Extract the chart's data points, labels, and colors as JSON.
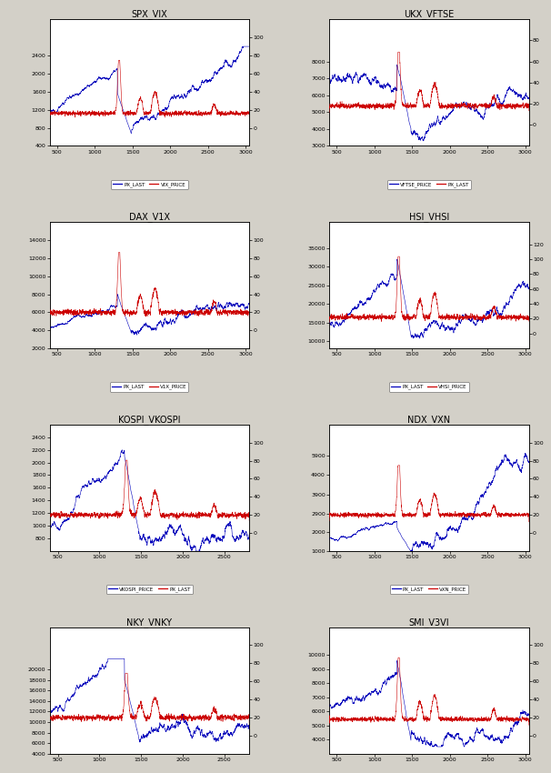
{
  "figsize": [
    6.06,
    8.5
  ],
  "dpi": 100,
  "bg_color": "#d3d0c8",
  "plot_bg_color": "#ffffff",
  "nrows": 4,
  "ncols": 2,
  "panels": [
    {
      "title": "SPX_VIX",
      "left_label": "PX_LAST",
      "right_label": "VIX_PRICE",
      "left_color": "#0000bb",
      "right_color": "#cc0000",
      "left_ylim": [
        400,
        3200
      ],
      "left_yticks": [
        400,
        800,
        1200,
        1600,
        2000,
        2400
      ],
      "right_ylim": [
        -20,
        120
      ],
      "right_yticks": [
        0,
        20,
        40,
        60,
        80,
        100
      ],
      "xlim": [
        400,
        3050
      ],
      "xticks": [
        500,
        1000,
        1500,
        2000,
        2500,
        3000
      ],
      "equity_key": "spx",
      "vol_key": "vix",
      "equity_on_left": true,
      "equity_color": "#0000bb",
      "vol_color": "#cc0000"
    },
    {
      "title": "UKX_VFTSE",
      "left_label": "VFTSE_PRICE",
      "right_label": "PX_LAST",
      "left_color": "#0000bb",
      "right_color": "#cc0000",
      "left_ylim": [
        3000,
        10500
      ],
      "left_yticks": [
        3000,
        4000,
        5000,
        6000,
        7000,
        8000
      ],
      "right_ylim": [
        -20,
        100
      ],
      "right_yticks": [
        0,
        20,
        40,
        60,
        80
      ],
      "xlim": [
        400,
        3050
      ],
      "xticks": [
        500,
        1000,
        1500,
        2000,
        2500,
        3000
      ],
      "equity_key": "ukx",
      "vol_key": "vftse",
      "equity_on_left": true,
      "equity_color": "#0000bb",
      "vol_color": "#cc0000"
    },
    {
      "title": "DAX_V1X",
      "left_label": "PX_LAST",
      "right_label": "V1X_PRICE",
      "left_color": "#0000bb",
      "right_color": "#cc0000",
      "left_ylim": [
        2000,
        16000
      ],
      "left_yticks": [
        2000,
        4000,
        6000,
        8000,
        10000,
        12000,
        14000
      ],
      "right_ylim": [
        -20,
        120
      ],
      "right_yticks": [
        0,
        20,
        40,
        60,
        80,
        100
      ],
      "xlim": [
        400,
        3050
      ],
      "xticks": [
        500,
        1000,
        1500,
        2000,
        2500,
        3000
      ],
      "equity_key": "dax",
      "vol_key": "v1x",
      "equity_on_left": true,
      "equity_color": "#0000bb",
      "vol_color": "#cc0000"
    },
    {
      "title": "HSI_VHSI",
      "left_label": "PX_LAST",
      "right_label": "VHSI_PRICE",
      "left_color": "#0000bb",
      "right_color": "#cc0000",
      "left_ylim": [
        8000,
        42000
      ],
      "left_yticks": [
        10000,
        15000,
        20000,
        25000,
        30000,
        35000
      ],
      "right_ylim": [
        -20,
        150
      ],
      "right_yticks": [
        0,
        20,
        40,
        60,
        80,
        100,
        120
      ],
      "xlim": [
        400,
        3050
      ],
      "xticks": [
        500,
        1000,
        1500,
        2000,
        2500,
        3000
      ],
      "equity_key": "hsi",
      "vol_key": "vhsi",
      "equity_on_left": true,
      "equity_color": "#0000bb",
      "vol_color": "#cc0000"
    },
    {
      "title": "KOSPI_VKOSPI",
      "left_label": "VKOSPI_PRICE",
      "right_label": "PX_LAST",
      "left_color": "#0000bb",
      "right_color": "#cc0000",
      "left_ylim": [
        600,
        2600
      ],
      "left_yticks": [
        800,
        1000,
        1200,
        1400,
        1600,
        1800,
        2000,
        2200,
        2400
      ],
      "right_ylim": [
        -20,
        120
      ],
      "right_yticks": [
        0,
        20,
        40,
        60,
        80,
        100
      ],
      "xlim": [
        400,
        2800
      ],
      "xticks": [
        500,
        1000,
        1500,
        2000,
        2500
      ],
      "equity_key": "kospi",
      "vol_key": "vkospi",
      "equity_on_left": true,
      "equity_color": "#0000bb",
      "vol_color": "#cc0000"
    },
    {
      "title": "NDX_VXN",
      "left_label": "PX_LAST",
      "right_label": "VXN_PRICE",
      "left_color": "#0000bb",
      "right_color": "#cc0000",
      "left_ylim": [
        1000,
        7500
      ],
      "left_yticks": [
        1000,
        2000,
        2900,
        3900,
        4900,
        5900
      ],
      "right_ylim": [
        -20,
        120
      ],
      "right_yticks": [
        0,
        20,
        40,
        60,
        80,
        100
      ],
      "xlim": [
        400,
        3050
      ],
      "xticks": [
        500,
        1000,
        1500,
        2000,
        2500,
        3000
      ],
      "equity_key": "ndx",
      "vol_key": "vxn",
      "equity_on_left": true,
      "equity_color": "#0000bb",
      "vol_color": "#cc0000"
    },
    {
      "title": "NKY_VNKY",
      "left_label": "VNKY_PRICE",
      "right_label": "PX_LAST",
      "left_color": "#0000bb",
      "right_color": "#cc0000",
      "left_ylim": [
        4000,
        28000
      ],
      "left_yticks": [
        4000,
        6000,
        8000,
        10000,
        12000,
        14000,
        16000,
        18000,
        20000
      ],
      "right_ylim": [
        -20,
        120
      ],
      "right_yticks": [
        0,
        20,
        40,
        60,
        80,
        100
      ],
      "xlim": [
        400,
        2800
      ],
      "xticks": [
        500,
        1000,
        1500,
        2000,
        2500
      ],
      "equity_key": "nky",
      "vol_key": "vnky",
      "equity_on_left": true,
      "equity_color": "#0000bb",
      "vol_color": "#cc0000"
    },
    {
      "title": "SMI_V3VI",
      "left_label": "PX_LAST",
      "right_label": "V3VI_PRICE",
      "left_color": "#0000bb",
      "right_color": "#cc0000",
      "left_ylim": [
        3000,
        12000
      ],
      "left_yticks": [
        4000,
        5000,
        6000,
        7000,
        8000,
        9000,
        10000
      ],
      "right_ylim": [
        -20,
        120
      ],
      "right_yticks": [
        0,
        20,
        40,
        60,
        80,
        100
      ],
      "xlim": [
        400,
        3050
      ],
      "xticks": [
        500,
        1000,
        1500,
        2000,
        2500,
        3000
      ],
      "equity_key": "smi",
      "vol_key": "v3vi",
      "equity_on_left": true,
      "equity_color": "#0000bb",
      "vol_color": "#cc0000"
    }
  ]
}
